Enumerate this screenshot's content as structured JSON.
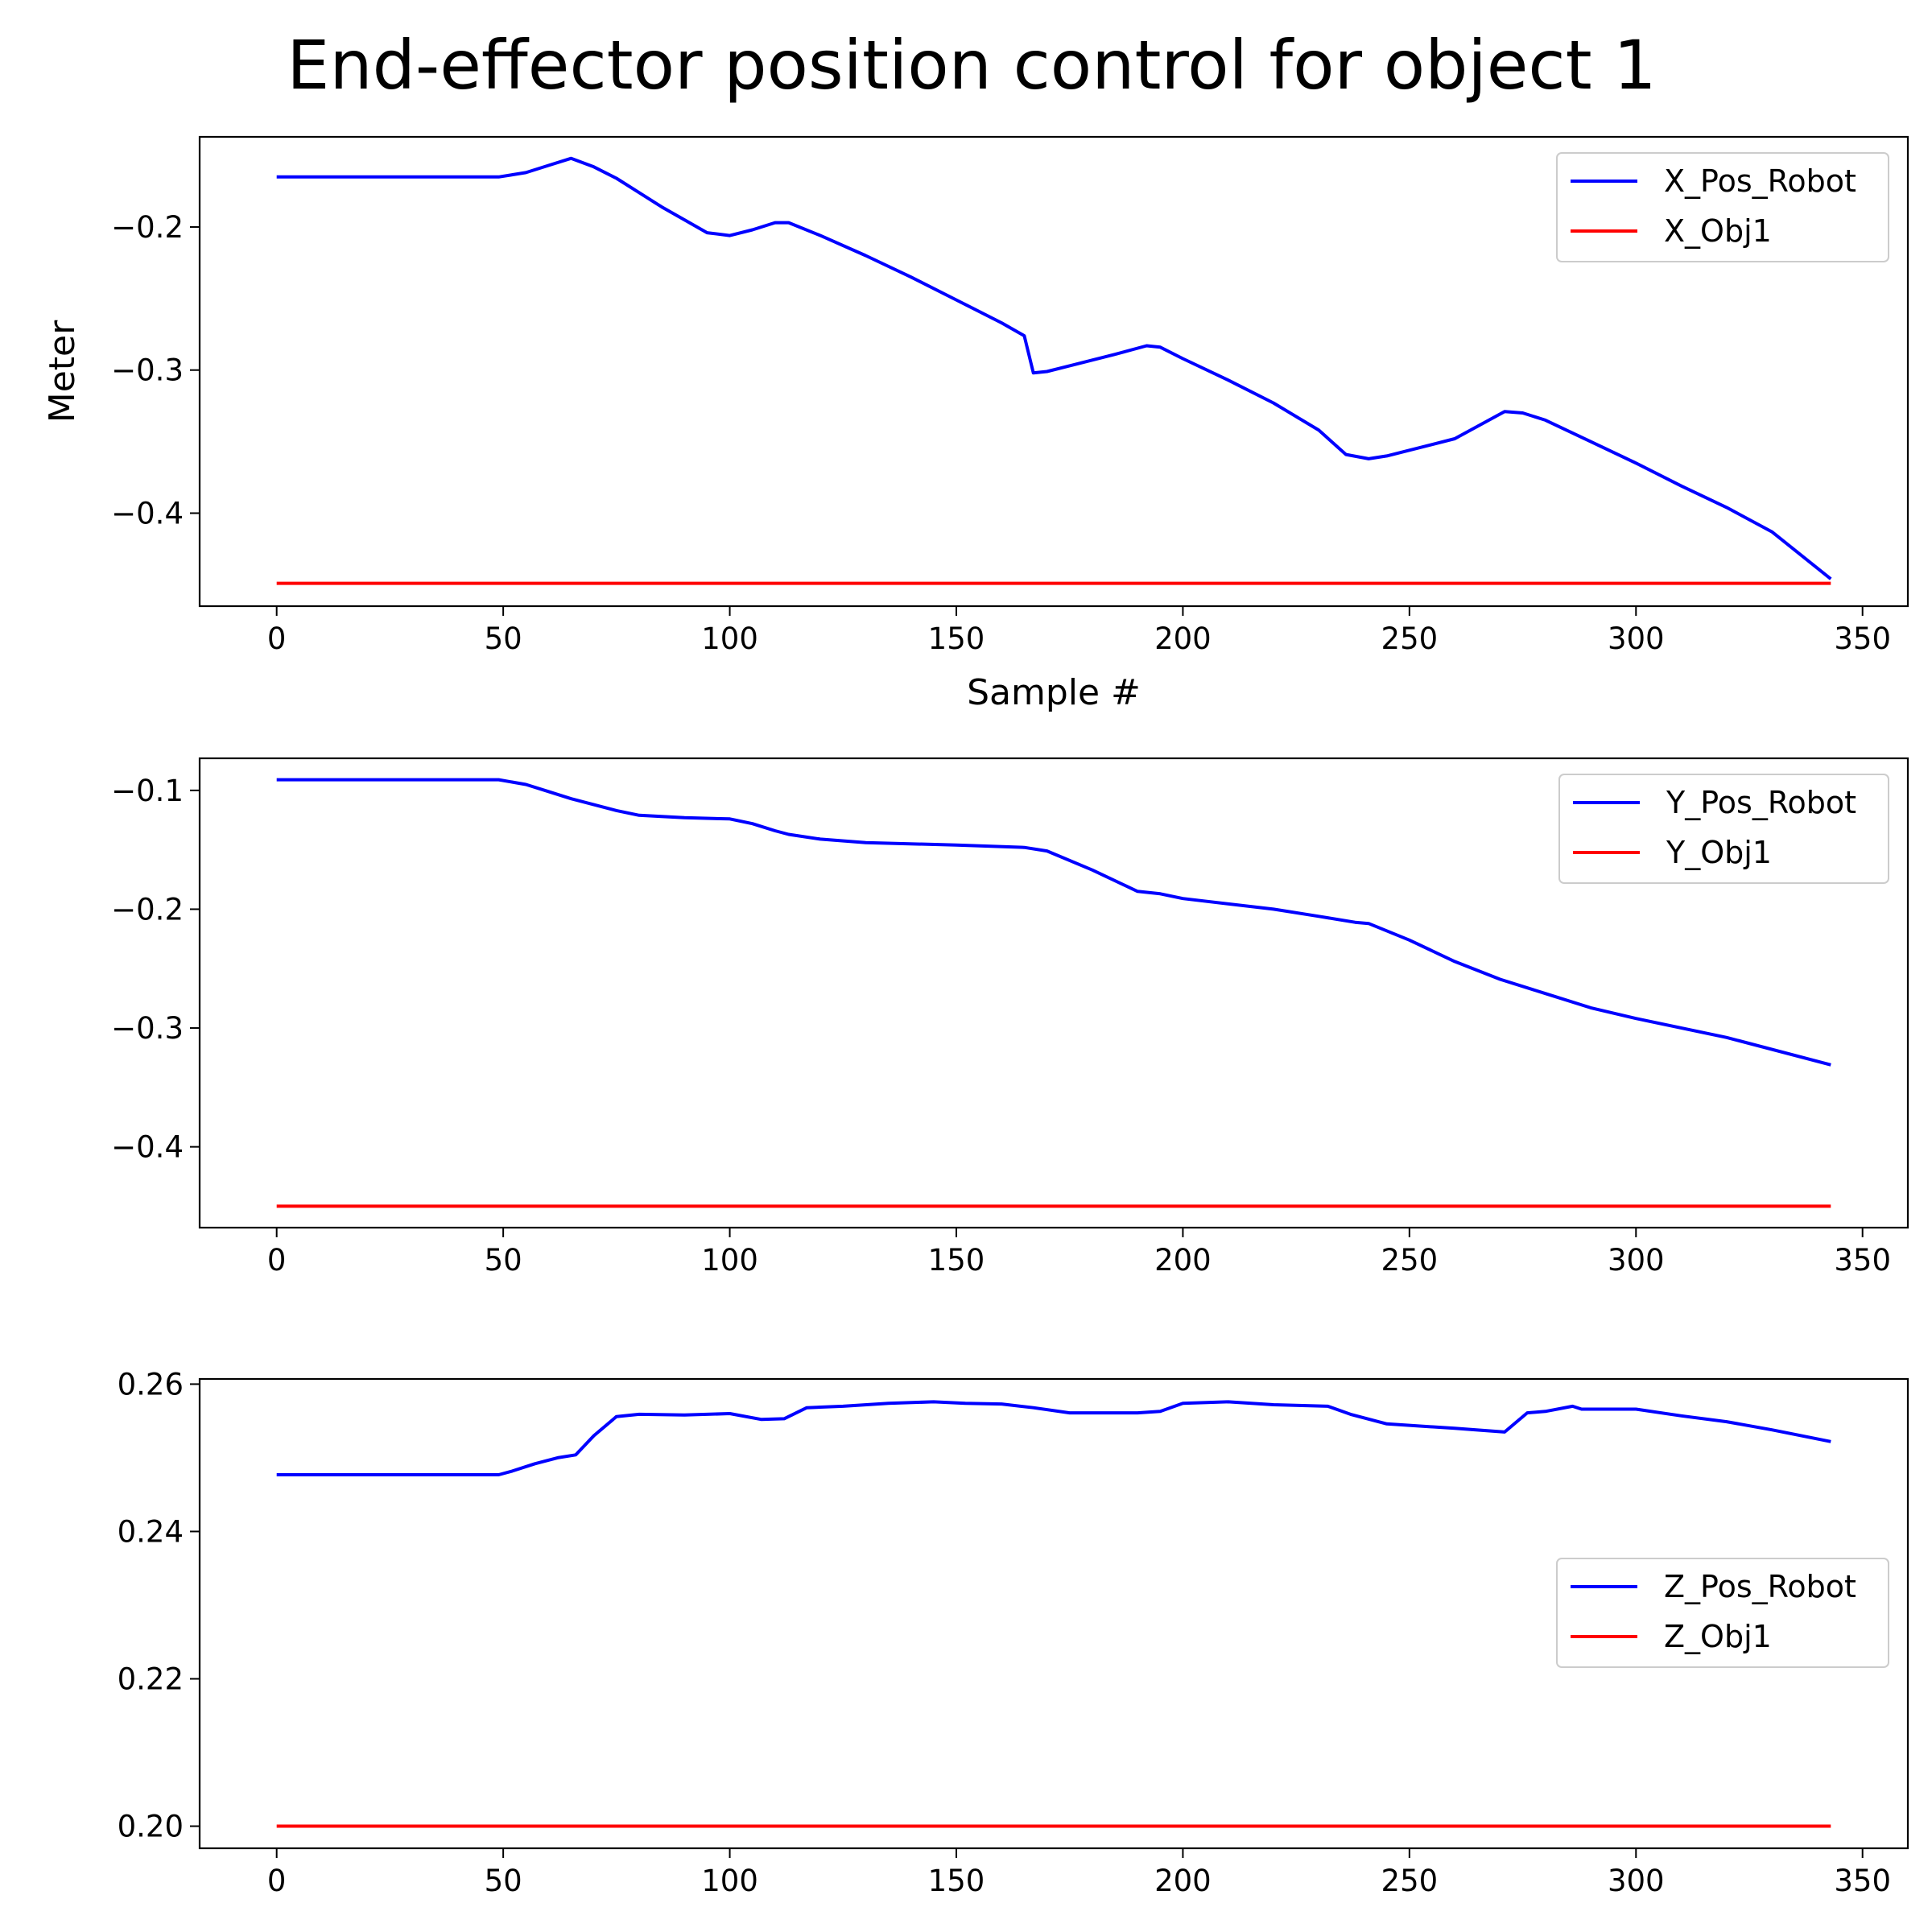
{
  "figure": {
    "title": "End-effector position control for object 1"
  },
  "chart_data": [
    {
      "type": "line",
      "xlim": [
        -17,
        360
      ],
      "ylim": [
        -0.465,
        -0.137
      ],
      "xticks": [
        0,
        50,
        100,
        150,
        200,
        250,
        300,
        350
      ],
      "yticks": [
        -0.2,
        -0.3,
        -0.4
      ],
      "ytick_labels": [
        "−0.2",
        "−0.3",
        "−0.4"
      ],
      "xlabel": "Sample #",
      "ylabel": "Meter",
      "legend": "top-right",
      "series": [
        {
          "name": "X_Pos_Robot",
          "color": "#0000ff",
          "points": [
            [
              0,
              -0.165
            ],
            [
              49,
              -0.165
            ],
            [
              55,
              -0.162
            ],
            [
              60,
              -0.157
            ],
            [
              65,
              -0.152
            ],
            [
              70,
              -0.158
            ],
            [
              75,
              -0.166
            ],
            [
              80,
              -0.176
            ],
            [
              85,
              -0.186
            ],
            [
              90,
              -0.195
            ],
            [
              95,
              -0.204
            ],
            [
              100,
              -0.206
            ],
            [
              105,
              -0.202
            ],
            [
              110,
              -0.197
            ],
            [
              113,
              -0.197
            ],
            [
              120,
              -0.206
            ],
            [
              130,
              -0.22
            ],
            [
              140,
              -0.235
            ],
            [
              150,
              -0.251
            ],
            [
              160,
              -0.267
            ],
            [
              165,
              -0.276
            ],
            [
              167,
              -0.302
            ],
            [
              170,
              -0.301
            ],
            [
              175,
              -0.297
            ],
            [
              185,
              -0.289
            ],
            [
              192,
              -0.283
            ],
            [
              195,
              -0.284
            ],
            [
              200,
              -0.292
            ],
            [
              210,
              -0.307
            ],
            [
              220,
              -0.323
            ],
            [
              230,
              -0.342
            ],
            [
              236,
              -0.359
            ],
            [
              241,
              -0.362
            ],
            [
              245,
              -0.36
            ],
            [
              250,
              -0.356
            ],
            [
              260,
              -0.348
            ],
            [
              271,
              -0.329
            ],
            [
              275,
              -0.33
            ],
            [
              280,
              -0.335
            ],
            [
              290,
              -0.35
            ],
            [
              300,
              -0.365
            ],
            [
              310,
              -0.381
            ],
            [
              320,
              -0.396
            ],
            [
              330,
              -0.413
            ],
            [
              343,
              -0.446
            ]
          ]
        },
        {
          "name": "X_Obj1",
          "color": "#ff0000",
          "points": [
            [
              0,
              -0.449
            ],
            [
              343,
              -0.449
            ]
          ]
        }
      ]
    },
    {
      "type": "line",
      "xlim": [
        -17,
        360
      ],
      "ylim": [
        -0.468,
        -0.073
      ],
      "xticks": [
        0,
        50,
        100,
        150,
        200,
        250,
        300,
        350
      ],
      "yticks": [
        -0.1,
        -0.2,
        -0.3,
        -0.4
      ],
      "ytick_labels": [
        "−0.1",
        "−0.2",
        "−0.3",
        "−0.4"
      ],
      "xlabel": "",
      "ylabel": "",
      "legend": "top-right",
      "series": [
        {
          "name": "Y_Pos_Robot",
          "color": "#0000ff",
          "points": [
            [
              0,
              -0.091
            ],
            [
              49,
              -0.091
            ],
            [
              55,
              -0.095
            ],
            [
              60,
              -0.101
            ],
            [
              65,
              -0.107
            ],
            [
              70,
              -0.112
            ],
            [
              75,
              -0.117
            ],
            [
              80,
              -0.121
            ],
            [
              90,
              -0.123
            ],
            [
              100,
              -0.124
            ],
            [
              105,
              -0.128
            ],
            [
              110,
              -0.134
            ],
            [
              113,
              -0.137
            ],
            [
              120,
              -0.141
            ],
            [
              130,
              -0.144
            ],
            [
              150,
              -0.146
            ],
            [
              165,
              -0.148
            ],
            [
              170,
              -0.151
            ],
            [
              180,
              -0.167
            ],
            [
              190,
              -0.185
            ],
            [
              195,
              -0.187
            ],
            [
              200,
              -0.191
            ],
            [
              220,
              -0.2
            ],
            [
              230,
              -0.206
            ],
            [
              238,
              -0.211
            ],
            [
              241,
              -0.212
            ],
            [
              250,
              -0.226
            ],
            [
              260,
              -0.244
            ],
            [
              270,
              -0.259
            ],
            [
              280,
              -0.271
            ],
            [
              290,
              -0.283
            ],
            [
              300,
              -0.292
            ],
            [
              320,
              -0.308
            ],
            [
              343,
              -0.331
            ]
          ]
        },
        {
          "name": "Y_Obj1",
          "color": "#ff0000",
          "points": [
            [
              0,
              -0.45
            ],
            [
              343,
              -0.45
            ]
          ]
        }
      ]
    },
    {
      "type": "line",
      "xlim": [
        -17,
        360
      ],
      "ylim": [
        0.197,
        0.2607
      ],
      "xticks": [
        0,
        50,
        100,
        150,
        200,
        250,
        300,
        350
      ],
      "yticks": [
        0.2,
        0.22,
        0.24,
        0.26
      ],
      "ytick_labels": [
        "0.20",
        "0.22",
        "0.24",
        "0.26"
      ],
      "xlabel": "",
      "ylabel": "",
      "legend": "center-right",
      "series": [
        {
          "name": "Z_Pos_Robot",
          "color": "#0000ff",
          "points": [
            [
              0,
              0.2477
            ],
            [
              49,
              0.2477
            ],
            [
              52,
              0.2482
            ],
            [
              57,
              0.2492
            ],
            [
              62,
              0.25
            ],
            [
              66,
              0.2504
            ],
            [
              70,
              0.253
            ],
            [
              75,
              0.2556
            ],
            [
              80,
              0.2559
            ],
            [
              90,
              0.2558
            ],
            [
              100,
              0.256
            ],
            [
              107,
              0.2552
            ],
            [
              112,
              0.2553
            ],
            [
              117,
              0.2568
            ],
            [
              125,
              0.257
            ],
            [
              135,
              0.2574
            ],
            [
              145,
              0.2576
            ],
            [
              152,
              0.2574
            ],
            [
              160,
              0.2573
            ],
            [
              167,
              0.2568
            ],
            [
              175,
              0.2561
            ],
            [
              190,
              0.2561
            ],
            [
              195,
              0.2563
            ],
            [
              200,
              0.2574
            ],
            [
              210,
              0.2576
            ],
            [
              220,
              0.2572
            ],
            [
              232,
              0.257
            ],
            [
              237,
              0.2559
            ],
            [
              245,
              0.2546
            ],
            [
              260,
              0.254
            ],
            [
              271,
              0.2535
            ],
            [
              276,
              0.2561
            ],
            [
              280,
              0.2563
            ],
            [
              286,
              0.257
            ],
            [
              288,
              0.2566
            ],
            [
              300,
              0.2566
            ],
            [
              310,
              0.2557
            ],
            [
              320,
              0.2549
            ],
            [
              330,
              0.2538
            ],
            [
              343,
              0.2522
            ]
          ]
        },
        {
          "name": "Z_Obj1",
          "color": "#ff0000",
          "points": [
            [
              0,
              0.2
            ],
            [
              343,
              0.2
            ]
          ]
        }
      ]
    }
  ]
}
